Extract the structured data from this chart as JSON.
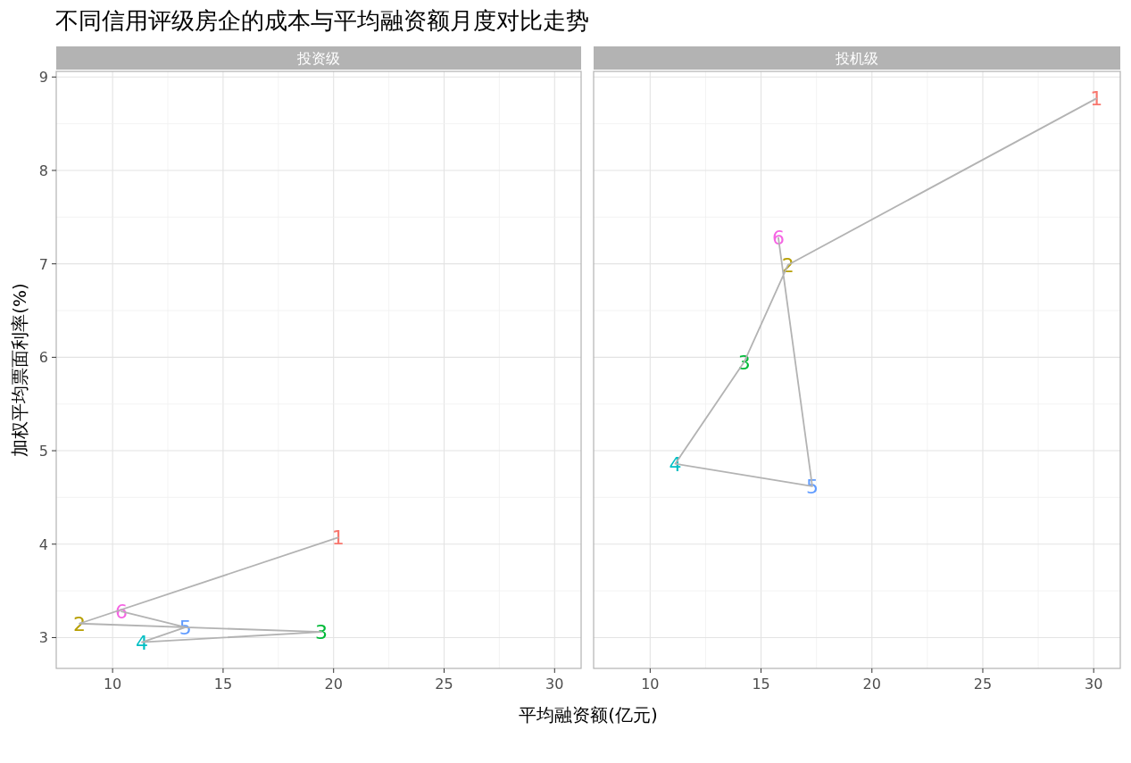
{
  "chart_data": [
    {
      "type": "line",
      "title": "不同信用评级房企的成本与平均融资额月度对比走势",
      "subtitle": "投资级",
      "xlabel": "平均融资额(亿元)",
      "ylabel": "加权平均票面利率(%)",
      "xlim": [
        7.45,
        31.2
      ],
      "ylim": [
        2.67,
        9.06
      ],
      "xticks": [
        10,
        15,
        20,
        25,
        30
      ],
      "yticks": [
        3,
        4,
        5,
        6,
        7,
        8,
        9
      ],
      "grid": true,
      "series": [
        {
          "color": "#b3b3b3",
          "x": [
            20.2,
            8.5,
            19.45,
            11.33,
            13.3,
            10.4
          ],
          "values": [
            4.07,
            3.15,
            3.06,
            2.95,
            3.11,
            3.28
          ],
          "colors": [
            "#f8766d",
            "#b79f00",
            "#00ba38",
            "#00bfc4",
            "#619cff",
            "#f564e3"
          ]
        }
      ],
      "annotations": [
        {
          "text": "1",
          "x": 20.2,
          "y": 4.07
        },
        {
          "text": "2",
          "x": 8.5,
          "y": 3.15
        },
        {
          "text": "3",
          "x": 19.45,
          "y": 3.06
        },
        {
          "text": "4",
          "x": 11.33,
          "y": 2.95
        },
        {
          "text": "5",
          "x": 13.3,
          "y": 3.11
        },
        {
          "text": "6",
          "x": 10.4,
          "y": 3.28
        }
      ]
    },
    {
      "type": "line",
      "subtitle": "投机级",
      "xlim": [
        7.45,
        31.2
      ],
      "ylim": [
        2.67,
        9.06
      ],
      "xticks": [
        10,
        15,
        20,
        25,
        30
      ],
      "yticks": [
        3,
        4,
        5,
        6,
        7,
        8,
        9
      ],
      "grid": true,
      "tick_labels": "x",
      "series": [
        {
          "color": "#b3b3b3",
          "x": [
            30.12,
            16.22,
            14.24,
            11.13,
            17.31,
            15.78
          ],
          "values": [
            8.77,
            6.99,
            5.95,
            4.86,
            4.62,
            7.28
          ],
          "colors": [
            "#f8766d",
            "#b79f00",
            "#00ba38",
            "#00bfc4",
            "#619cff",
            "#f564e3"
          ]
        }
      ],
      "annotations": [
        {
          "text": "1",
          "x": 30.12,
          "y": 8.77
        },
        {
          "text": "2",
          "x": 16.22,
          "y": 6.99
        },
        {
          "text": "3",
          "x": 14.24,
          "y": 5.95
        },
        {
          "text": "4",
          "x": 11.13,
          "y": 4.86
        },
        {
          "text": "5",
          "x": 17.31,
          "y": 4.62
        },
        {
          "text": "6",
          "x": 15.78,
          "y": 7.28
        }
      ]
    }
  ]
}
